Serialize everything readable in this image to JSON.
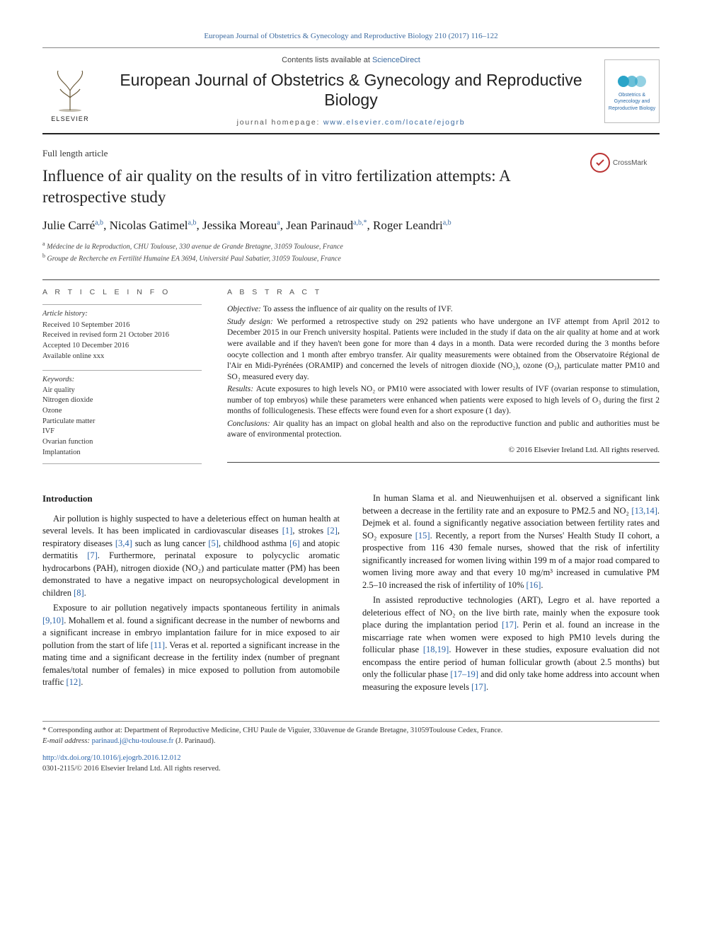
{
  "topbar": {
    "citation": "European Journal of Obstetrics & Gynecology and Reproductive Biology 210 (2017) 116–122",
    "color": "#3b6aa0",
    "fontsize": 11
  },
  "masthead": {
    "contents_prefix": "Contents lists available at ",
    "contents_link_text": "ScienceDirect",
    "journal_name": "European Journal of Obstetrics & Gynecology and Reproductive Biology",
    "homepage_prefix": "journal homepage: ",
    "homepage_url_text": "www.elsevier.com/locate/ejogrb",
    "publisher_word": "ELSEVIER",
    "journal_logo_text": "Obstetrics & Gynecology and Reproductive Biology",
    "border_bottom_color": "#222222",
    "journal_name_fontsize": 23
  },
  "crossmark": {
    "label": "CrossMark"
  },
  "article": {
    "type": "Full length article",
    "title": "Influence of air quality on the results of in vitro fertilization attempts: A retrospective study",
    "title_fontsize": 23,
    "authors": [
      {
        "name": "Julie Carré",
        "aff": "a,b"
      },
      {
        "name": "Nicolas Gatimel",
        "aff": "a,b"
      },
      {
        "name": "Jessika Moreau",
        "aff": "a"
      },
      {
        "name": "Jean Parinaud",
        "aff": "a,b,*"
      },
      {
        "name": "Roger Leandri",
        "aff": "a,b"
      }
    ],
    "authors_fontsize": 17,
    "aff_color": "#3b6aa0",
    "affiliations": {
      "a": "Médecine de la Reproduction, CHU Toulouse, 330 avenue de Grande Bretagne, 31059 Toulouse, France",
      "b": "Groupe de Recherche en Fertilité Humaine EA 3694, Université Paul Sabatier, 31059 Toulouse, France"
    }
  },
  "info": {
    "heading": "A R T I C L E  I N F O",
    "history_heading": "Article history:",
    "history": [
      "Received 10 September 2016",
      "Received in revised form 21 October 2016",
      "Accepted 10 December 2016",
      "Available online xxx"
    ],
    "keywords_heading": "Keywords:",
    "keywords": [
      "Air quality",
      "Nitrogen dioxide",
      "Ozone",
      "Particulate matter",
      "IVF",
      "Ovarian function",
      "Implantation"
    ]
  },
  "abstract": {
    "heading": "A B S T R A C T",
    "sections": [
      {
        "label": "Objective:",
        "text": "To assess the influence of air quality on the results of IVF."
      },
      {
        "label": "Study design:",
        "text": "We performed a retrospective study on 292 patients who have undergone an IVF attempt from April 2012 to December 2015 in our French university hospital. Patients were included in the study if data on the air quality at home and at work were available and if they haven't been gone for more than 4 days in a month. Data were recorded during the 3 months before oocyte collection and 1 month after embryo transfer. Air quality measurements were obtained from the Observatoire Régional de l'Air en Midi-Pyrénées (ORAMIP) and concerned the levels of nitrogen dioxide (NO₂), ozone (O₃), particulate matter PM10 and SO₂ measured every day."
      },
      {
        "label": "Results:",
        "text": "Acute exposures to high levels NO₂ or PM10 were associated with lower results of IVF (ovarian response to stimulation, number of top embryos) while these parameters were enhanced when patients were exposed to high levels of O₃ during the first 2 months of folliculogenesis. These effects were found even for a short exposure (1 day)."
      },
      {
        "label": "Conclusions:",
        "text": "Air quality has an impact on global health and also on the reproductive function and public and authorities must be aware of environmental protection."
      }
    ],
    "copyright": "© 2016 Elsevier Ireland Ltd. All rights reserved.",
    "fontsize": 11.5
  },
  "body": {
    "section_heading": "Introduction",
    "cite_color": "#2a63a8",
    "fontsize": 12.5,
    "paragraphs": [
      "Air pollution is highly suspected to have a deleterious effect on human health at several levels. It has been implicated in cardiovascular diseases [1], strokes [2], respiratory diseases [3,4] such as lung cancer [5], childhood asthma [6] and atopic dermatitis [7]. Furthermore, perinatal exposure to polycyclic aromatic hydrocarbons (PAH), nitrogen dioxide (NO₂) and particulate matter (PM) has been demonstrated to have a negative impact on neuropsychological development in children [8].",
      "Exposure to air pollution negatively impacts spontaneous fertility in animals [9,10]. Mohallem et al. found a significant decrease in the number of newborns and a significant increase in embryo implantation failure for in mice exposed to air pollution from the start of life [11]. Veras et al. reported a significant increase in the mating time and a significant decrease in the fertility index (number of pregnant females/total number of females) in mice exposed to pollution from automobile traffic [12].",
      "In human Slama et al. and Nieuwenhuijsen et al. observed a significant link between a decrease in the fertility rate and an exposure to PM2.5 and NO₂ [13,14]. Dejmek et al. found a significantly negative association between fertility rates and SO₂ exposure [15]. Recently, a report from the Nurses' Health Study II cohort, a prospective from 116 430 female nurses, showed that the risk of infertility significantly increased for women living within 199 m of a major road compared to women living more away and that every 10 mg/m³ increased in cumulative PM 2.5–10 increased the risk of infertility of 10% [16].",
      "In assisted reproductive technologies (ART), Legro et al. have reported a deleterious effect of NO₂ on the live birth rate, mainly when the exposure took place during the implantation period [17]. Perin et al. found an increase in the miscarriage rate when women were exposed to high PM10 levels during the follicular phase [18,19]. However in these studies, exposure evaluation did not encompass the entire period of human follicular growth (about 2.5 months) but only the follicular phase [17–19] and did only take home address into account when measuring the exposure levels [17]."
    ],
    "citation_tokens": [
      "[1]",
      "[2]",
      "[3,4]",
      "[5]",
      "[6]",
      "[7]",
      "[8]",
      "[9,10]",
      "[11]",
      "[12]",
      "[13,14]",
      "[15]",
      "[16]",
      "[17]",
      "[18,19]",
      "[17–19]"
    ]
  },
  "footer": {
    "corresponding_label": "* Corresponding author at:",
    "corresponding_text": "Department of Reproductive Medicine, CHU Paule de Viguier, 330avenue de Grande Bretagne, 31059Toulouse Cedex, France.",
    "email_label": "E-mail address:",
    "email": "parinaud.j@chu-toulouse.fr",
    "email_paren": "(J. Parinaud).",
    "doi": "http://dx.doi.org/10.1016/j.ejogrb.2016.12.012",
    "issn_line": "0301-2115/© 2016 Elsevier Ireland Ltd. All rights reserved."
  },
  "styles": {
    "page_bg": "#ffffff",
    "text_color": "#1a1a1a",
    "rule_color": "#444444",
    "light_rule": "#aaaaaa"
  }
}
